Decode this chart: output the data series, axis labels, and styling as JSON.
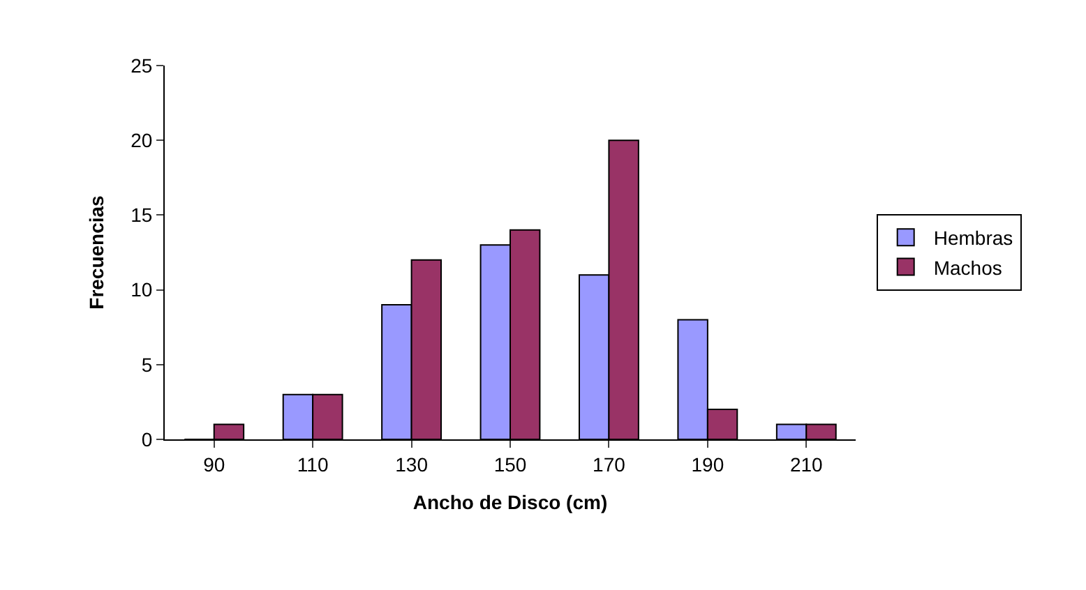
{
  "chart_data": {
    "type": "bar",
    "xlabel": "Ancho de Disco (cm)",
    "ylabel": "Frecuencias",
    "categories": [
      "90",
      "110",
      "130",
      "150",
      "170",
      "190",
      "210"
    ],
    "series": [
      {
        "name": "Hembras",
        "color": "#9999ff",
        "values": [
          0,
          3,
          9,
          13,
          11,
          8,
          1
        ]
      },
      {
        "name": "Machos",
        "color": "#993366",
        "values": [
          1,
          3,
          12,
          14,
          20,
          2,
          1
        ]
      }
    ],
    "ylim": [
      0,
      25
    ],
    "yticks": [
      0,
      5,
      10,
      15,
      20,
      25
    ],
    "legend": "right"
  }
}
